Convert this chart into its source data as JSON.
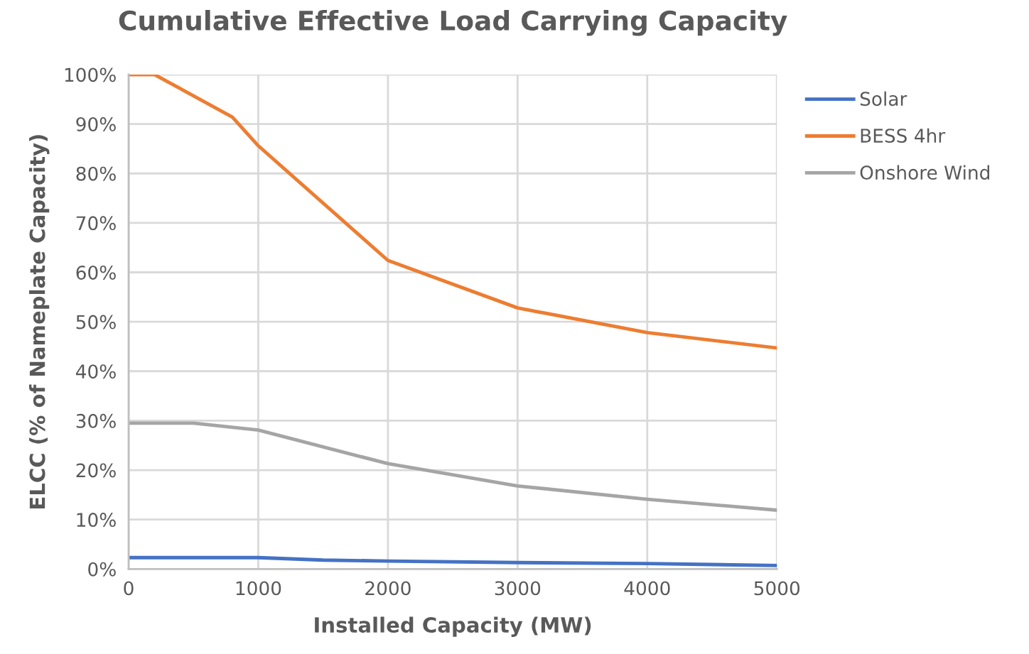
{
  "chart_data": {
    "type": "line",
    "title": "Cumulative Effective Load Carrying Capacity",
    "xlabel": "Installed Capacity (MW)",
    "ylabel": "ELCC (% of Nameplate Capacity)",
    "xlim": [
      0,
      5000
    ],
    "xticks": [
      0,
      1000,
      2000,
      3000,
      4000,
      5000
    ],
    "ylim": [
      0,
      100
    ],
    "yticks": [
      {
        "value": 0,
        "label": "0%"
      },
      {
        "value": 10,
        "label": "10%"
      },
      {
        "value": 20,
        "label": "20%"
      },
      {
        "value": 30,
        "label": "30%"
      },
      {
        "value": 40,
        "label": "40%"
      },
      {
        "value": 50,
        "label": "50%"
      },
      {
        "value": 60,
        "label": "60%"
      },
      {
        "value": 70,
        "label": "70%"
      },
      {
        "value": 80,
        "label": "80%"
      },
      {
        "value": 90,
        "label": "90%"
      },
      {
        "value": 100,
        "label": "100%"
      }
    ],
    "grid": true,
    "legend": "top right",
    "marker": "none",
    "line_style": "solid",
    "series": [
      {
        "name": "Solar",
        "color": "#4472c4",
        "x": [
          0,
          1000,
          1500,
          2000,
          3000,
          4000,
          5000
        ],
        "values": [
          2.3,
          2.3,
          1.8,
          1.6,
          1.3,
          1.1,
          0.7
        ]
      },
      {
        "name": "BESS 4hr",
        "color": "#ed7d31",
        "x": [
          0,
          200,
          800,
          1000,
          2000,
          3000,
          4000,
          5000
        ],
        "values": [
          100,
          100,
          91.4,
          85.6,
          62.4,
          52.8,
          47.8,
          44.7
        ]
      },
      {
        "name": "Onshore Wind",
        "color": "#a5a5a5",
        "x": [
          0,
          500,
          1000,
          2000,
          3000,
          4000,
          5000
        ],
        "values": [
          29.5,
          29.5,
          28.1,
          21.3,
          16.8,
          14.1,
          11.9
        ]
      }
    ]
  }
}
